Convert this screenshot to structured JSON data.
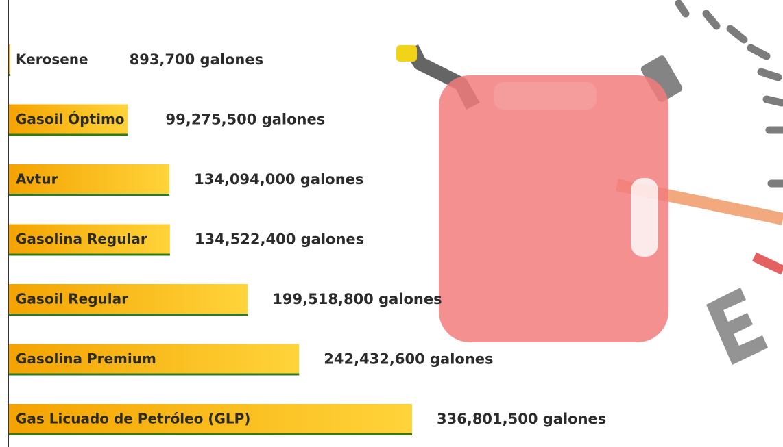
{
  "chart_data": {
    "type": "bar",
    "orientation": "horizontal",
    "categories": [
      "Kerosene",
      "Gasoil Óptimo",
      "Avtur",
      "Gasolina Regular",
      "Gasoil Regular",
      "Gasolina Premium",
      "Gas Licuado de Petróleo (GLP)"
    ],
    "values": [
      893700,
      99275500,
      134094000,
      134522400,
      199518800,
      242432600,
      336801500
    ],
    "value_labels": [
      "893,700 galones",
      "99,275,500 galones",
      "134,094,000 galones",
      "134,522,400 galones",
      "199,518,800 galones",
      "242,432,600 galones",
      "336,801,500 galones"
    ],
    "color": "#f7b500"
  }
}
